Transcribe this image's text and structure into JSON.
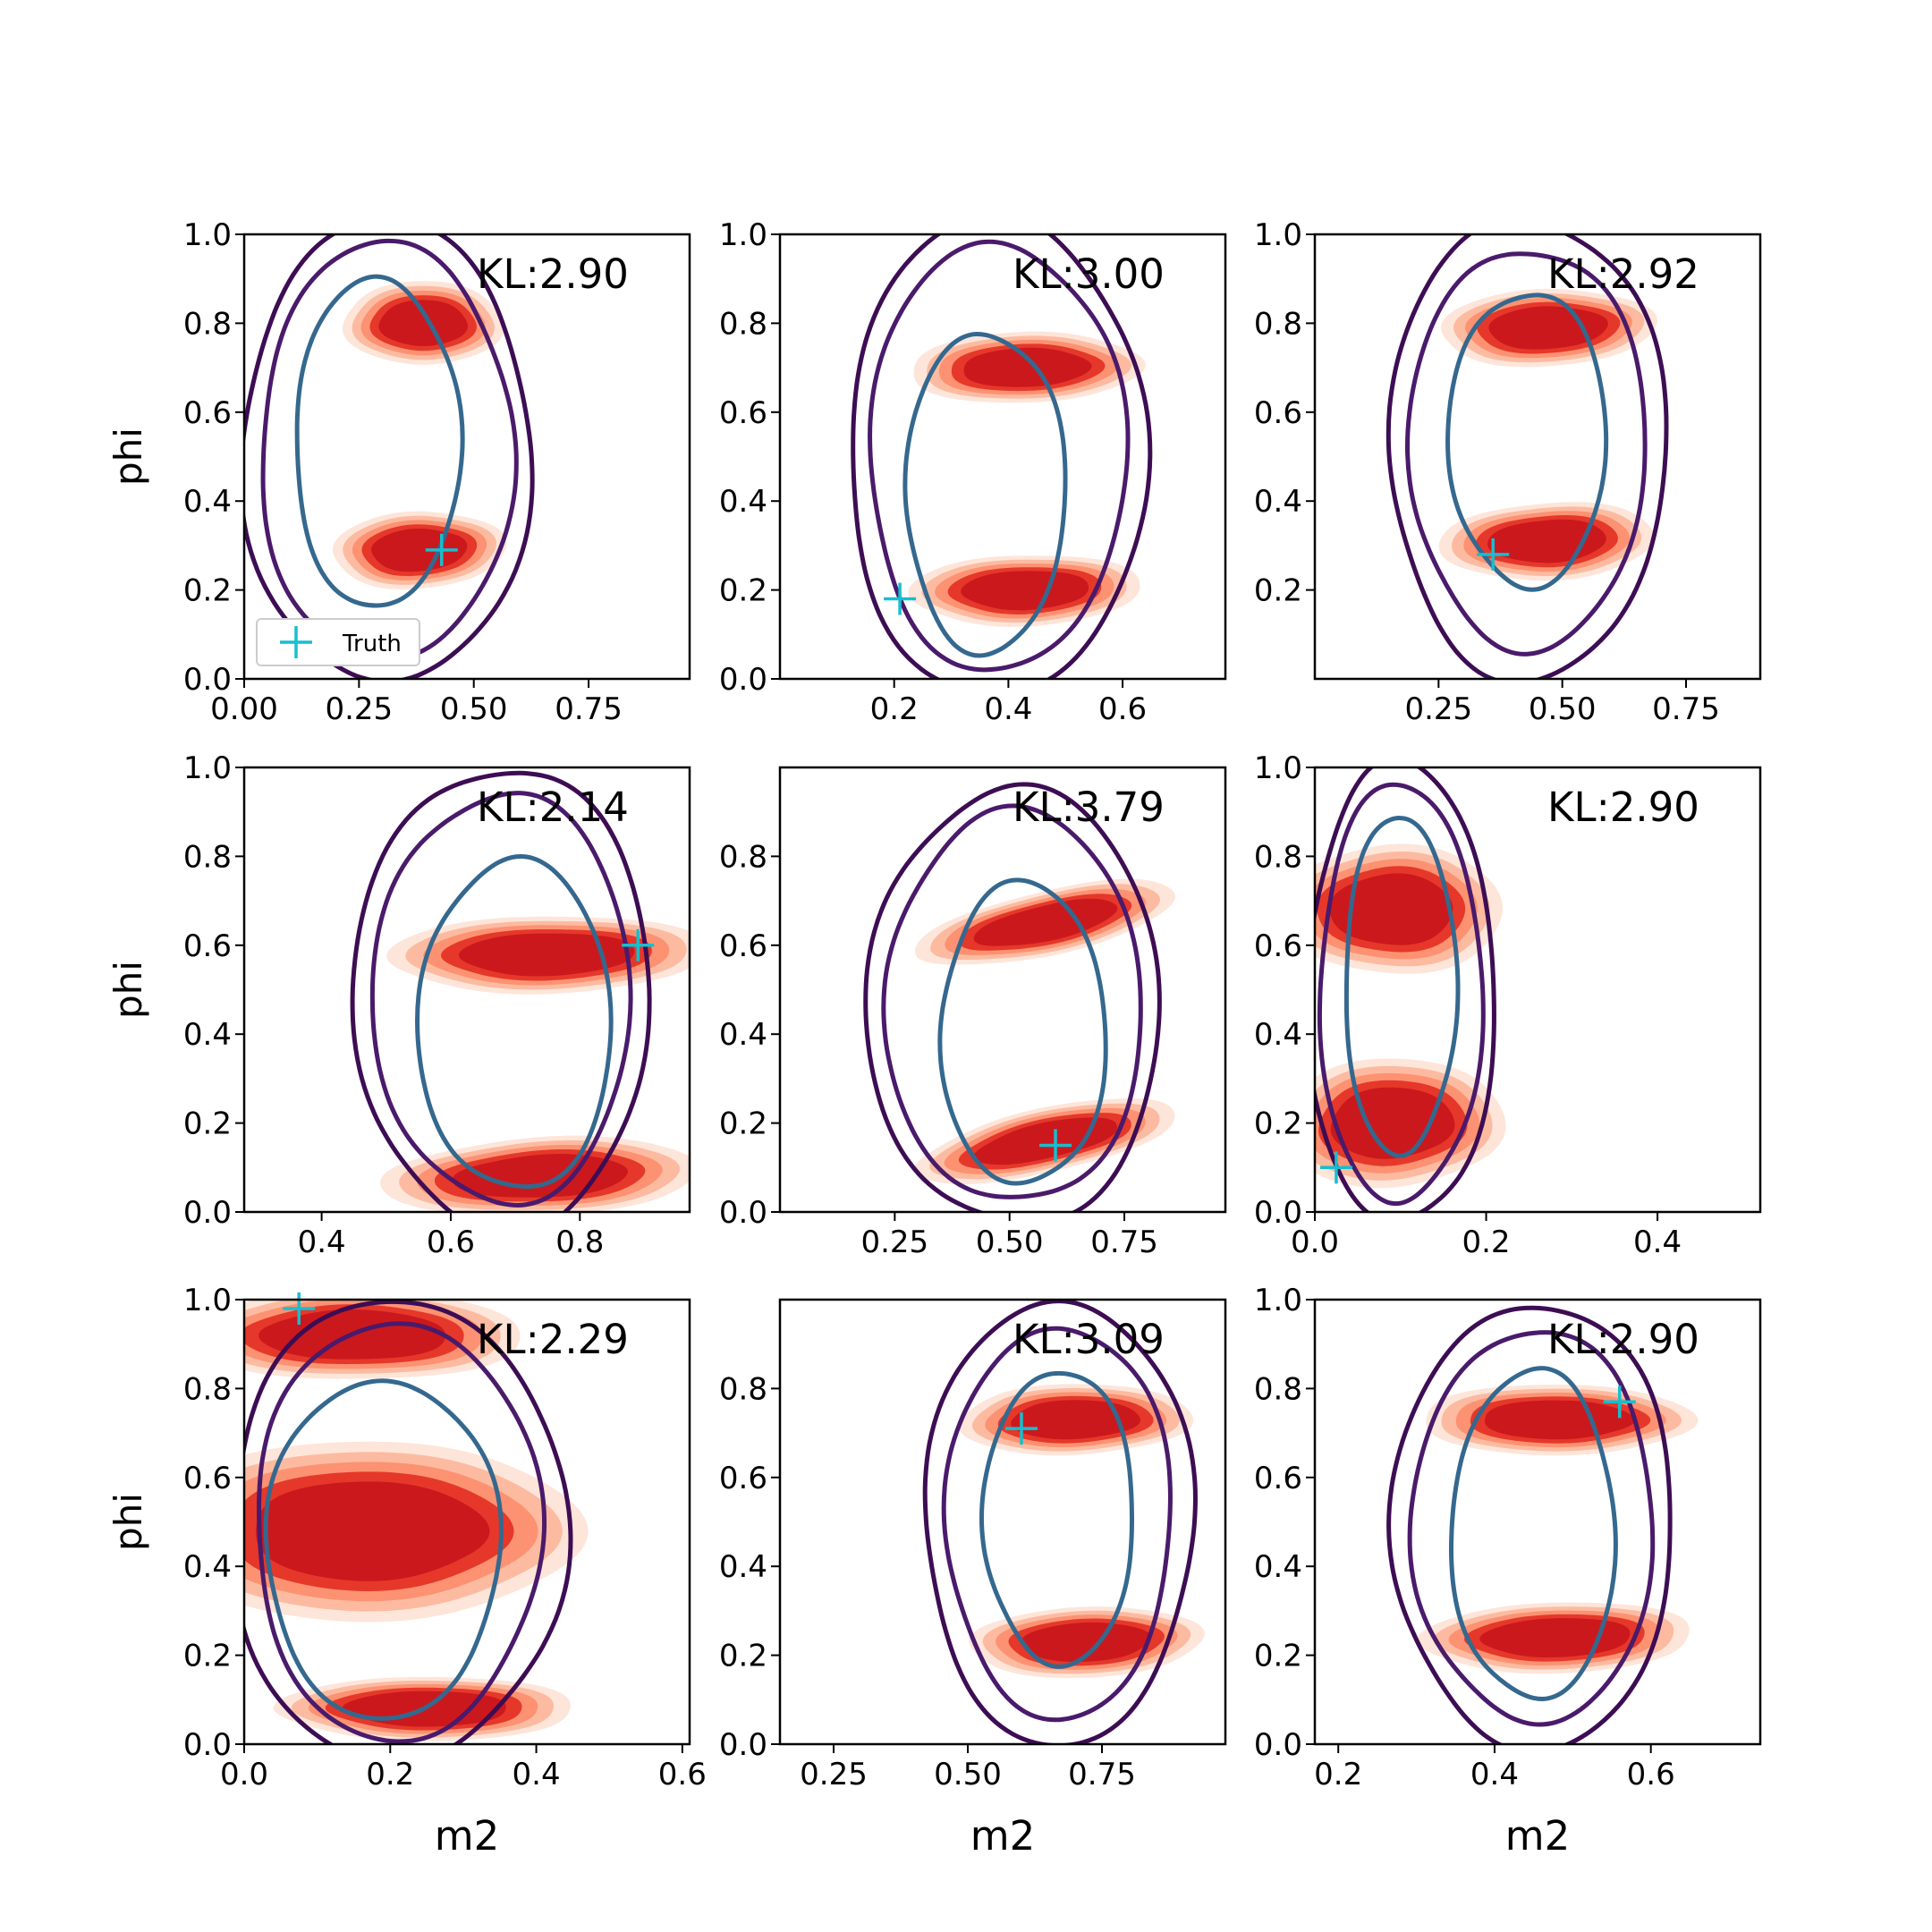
{
  "figure": {
    "legend_label": "Truth",
    "colors": {
      "fill_levels": [
        "#fee5d9",
        "#fcbba1",
        "#fc9272",
        "#e5382a",
        "#cb181d"
      ],
      "contour_outer": "#3d0d54",
      "contour_mid": "#4a1a6b",
      "contour_inner": "#35688e",
      "truth_marker": "#17becf",
      "axis": "#000000"
    }
  },
  "chart_data": [
    {
      "type": "contour",
      "panel": "1",
      "kl_label": "KL:2.90",
      "xlabel": "",
      "ylabel": "phi",
      "xlim": [
        0.0,
        0.97
      ],
      "ylim": [
        0,
        1
      ],
      "xticks": [
        "0.00",
        "0.25",
        "0.50",
        "0.75"
      ],
      "xtick_values": [
        0.0,
        0.25,
        0.5,
        0.75
      ],
      "yticks": [
        "0.0",
        "0.2",
        "0.4",
        "0.6",
        "0.8",
        "1.0"
      ],
      "ytick_values": [
        0.0,
        0.2,
        0.4,
        0.6,
        0.8,
        1.0
      ],
      "truth": [
        0.43,
        0.29
      ],
      "legend": true,
      "blobs": [
        {
          "cx": 0.39,
          "cy": 0.8,
          "rx": 0.12,
          "ry": 0.065,
          "tilt": 0
        },
        {
          "cx": 0.38,
          "cy": 0.29,
          "rx": 0.13,
          "ry": 0.06,
          "tilt": 0.05
        }
      ],
      "contours": [
        {
          "cx": 0.31,
          "cy": 0.51,
          "rx": 0.315,
          "ry": 0.52
        },
        {
          "cx": 0.31,
          "cy": 0.51,
          "rx": 0.275,
          "ry": 0.47
        },
        {
          "cx": 0.29,
          "cy": 0.53,
          "rx": 0.18,
          "ry": 0.37
        }
      ]
    },
    {
      "type": "contour",
      "panel": "2",
      "kl_label": "KL:3.00",
      "xlabel": "",
      "ylabel": "",
      "xlim": [
        0.0,
        0.78
      ],
      "ylim": [
        0,
        1
      ],
      "xticks": [
        "0.2",
        "0.4",
        "0.6"
      ],
      "xtick_values": [
        0.2,
        0.4,
        0.6
      ],
      "yticks": [
        "0.0",
        "0.2",
        "0.4",
        "0.6",
        "0.8",
        "1.0"
      ],
      "ytick_values": [
        0.0,
        0.2,
        0.4,
        0.6,
        0.8,
        1.0
      ],
      "truth": [
        0.21,
        0.18
      ],
      "legend": false,
      "blobs": [
        {
          "cx": 0.43,
          "cy": 0.7,
          "rx": 0.14,
          "ry": 0.055,
          "tilt": 0.03
        },
        {
          "cx": 0.43,
          "cy": 0.2,
          "rx": 0.14,
          "ry": 0.055,
          "tilt": 0.03
        }
      ],
      "contours": [
        {
          "cx": 0.38,
          "cy": 0.5,
          "rx": 0.26,
          "ry": 0.54
        },
        {
          "cx": 0.38,
          "cy": 0.5,
          "rx": 0.225,
          "ry": 0.48
        },
        {
          "cx": 0.36,
          "cy": 0.42,
          "rx": 0.14,
          "ry": 0.36
        }
      ]
    },
    {
      "type": "contour",
      "panel": "3",
      "kl_label": "KL:2.92",
      "xlabel": "",
      "ylabel": "",
      "xlim": [
        0.0,
        0.9
      ],
      "ylim": [
        0,
        1
      ],
      "xticks": [
        "0.25",
        "0.50",
        "0.75"
      ],
      "xtick_values": [
        0.25,
        0.5,
        0.75
      ],
      "yticks": [
        "0.2",
        "0.4",
        "0.6",
        "0.8",
        "1.0"
      ],
      "ytick_values": [
        0.2,
        0.4,
        0.6,
        0.8,
        1.0
      ],
      "truth": [
        0.36,
        0.28
      ],
      "legend": false,
      "blobs": [
        {
          "cx": 0.47,
          "cy": 0.79,
          "rx": 0.15,
          "ry": 0.06,
          "tilt": 0.04
        },
        {
          "cx": 0.47,
          "cy": 0.31,
          "rx": 0.15,
          "ry": 0.06,
          "tilt": 0.05
        }
      ],
      "contours": [
        {
          "cx": 0.43,
          "cy": 0.52,
          "rx": 0.28,
          "ry": 0.52
        },
        {
          "cx": 0.43,
          "cy": 0.52,
          "rx": 0.24,
          "ry": 0.45
        },
        {
          "cx": 0.43,
          "cy": 0.54,
          "rx": 0.16,
          "ry": 0.33
        }
      ]
    },
    {
      "type": "contour",
      "panel": "4",
      "kl_label": "KL:2.14",
      "xlabel": "",
      "ylabel": "phi",
      "xlim": [
        0.28,
        0.97
      ],
      "ylim": [
        0,
        1
      ],
      "xticks": [
        "0.4",
        "0.6",
        "0.8"
      ],
      "xtick_values": [
        0.4,
        0.6,
        0.8
      ],
      "yticks": [
        "0.0",
        "0.2",
        "0.4",
        "0.6",
        "0.8",
        "1.0"
      ],
      "ytick_values": [
        0.0,
        0.2,
        0.4,
        0.6,
        0.8,
        1.0
      ],
      "truth": [
        0.89,
        0.6
      ],
      "legend": false,
      "blobs": [
        {
          "cx": 0.75,
          "cy": 0.58,
          "rx": 0.17,
          "ry": 0.06,
          "tilt": 0.02
        },
        {
          "cx": 0.74,
          "cy": 0.08,
          "rx": 0.17,
          "ry": 0.06,
          "tilt": 0.05
        }
      ],
      "contours": [
        {
          "cx": 0.68,
          "cy": 0.48,
          "rx": 0.23,
          "ry": 0.52
        },
        {
          "cx": 0.68,
          "cy": 0.48,
          "rx": 0.2,
          "ry": 0.46
        },
        {
          "cx": 0.7,
          "cy": 0.42,
          "rx": 0.15,
          "ry": 0.37
        }
      ]
    },
    {
      "type": "contour",
      "panel": "5",
      "kl_label": "KL:3.79",
      "xlabel": "",
      "ylabel": "",
      "xlim": [
        0.0,
        0.97
      ],
      "ylim": [
        0,
        1
      ],
      "xticks": [
        "0.25",
        "0.50",
        "0.75"
      ],
      "xtick_values": [
        0.25,
        0.5,
        0.75
      ],
      "yticks": [
        "0.0",
        "0.2",
        "0.4",
        "0.6",
        "0.8"
      ],
      "ytick_values": [
        0.0,
        0.2,
        0.4,
        0.6,
        0.8
      ],
      "truth": [
        0.6,
        0.15
      ],
      "legend": false,
      "blobs": [
        {
          "cx": 0.58,
          "cy": 0.65,
          "rx": 0.2,
          "ry": 0.05,
          "tilt": 0.22
        },
        {
          "cx": 0.58,
          "cy": 0.16,
          "rx": 0.2,
          "ry": 0.05,
          "tilt": 0.22
        }
      ],
      "contours": [
        {
          "cx": 0.51,
          "cy": 0.46,
          "rx": 0.32,
          "ry": 0.49
        },
        {
          "cx": 0.51,
          "cy": 0.46,
          "rx": 0.28,
          "ry": 0.44
        },
        {
          "cx": 0.53,
          "cy": 0.4,
          "rx": 0.18,
          "ry": 0.34
        }
      ]
    },
    {
      "type": "contour",
      "panel": "6",
      "kl_label": "KL:2.90",
      "xlabel": "",
      "ylabel": "",
      "xlim": [
        0.0,
        0.52
      ],
      "ylim": [
        0,
        1
      ],
      "xticks": [
        "0.0",
        "0.2",
        "0.4"
      ],
      "xtick_values": [
        0.0,
        0.2,
        0.4
      ],
      "yticks": [
        "0.0",
        "0.2",
        "0.4",
        "0.6",
        "0.8",
        "1.0"
      ],
      "ytick_values": [
        0.0,
        0.2,
        0.4,
        0.6,
        0.8,
        1.0
      ],
      "truth": [
        0.025,
        0.1
      ],
      "legend": false,
      "blobs": [
        {
          "cx": 0.09,
          "cy": 0.68,
          "rx": 0.09,
          "ry": 0.1,
          "tilt": 0
        },
        {
          "cx": 0.09,
          "cy": 0.2,
          "rx": 0.09,
          "ry": 0.1,
          "tilt": 0.05
        }
      ],
      "contours": [
        {
          "cx": 0.1,
          "cy": 0.49,
          "rx": 0.11,
          "ry": 0.52
        },
        {
          "cx": 0.1,
          "cy": 0.49,
          "rx": 0.095,
          "ry": 0.47
        },
        {
          "cx": 0.1,
          "cy": 0.51,
          "rx": 0.065,
          "ry": 0.38
        }
      ]
    },
    {
      "type": "contour",
      "panel": "7",
      "kl_label": "KL:2.29",
      "xlabel": "m2",
      "ylabel": "phi",
      "xlim": [
        0.0,
        0.61
      ],
      "ylim": [
        0,
        1
      ],
      "xticks": [
        "0.0",
        "0.2",
        "0.4",
        "0.6"
      ],
      "xtick_values": [
        0.0,
        0.2,
        0.4,
        0.6
      ],
      "yticks": [
        "0.0",
        "0.2",
        "0.4",
        "0.6",
        "0.8",
        "1.0"
      ],
      "ytick_values": [
        0.0,
        0.2,
        0.4,
        0.6,
        0.8,
        1.0
      ],
      "truth": [
        0.075,
        0.98
      ],
      "legend": false,
      "blobs": [
        {
          "cx": 0.15,
          "cy": 0.92,
          "rx": 0.16,
          "ry": 0.07,
          "tilt": 0
        },
        {
          "cx": 0.17,
          "cy": 0.48,
          "rx": 0.2,
          "ry": 0.14,
          "tilt": 0
        },
        {
          "cx": 0.25,
          "cy": 0.08,
          "rx": 0.14,
          "ry": 0.05,
          "tilt": 0
        }
      ],
      "contours": [
        {
          "cx": 0.21,
          "cy": 0.48,
          "rx": 0.23,
          "ry": 0.52
        },
        {
          "cx": 0.21,
          "cy": 0.48,
          "rx": 0.195,
          "ry": 0.47
        },
        {
          "cx": 0.19,
          "cy": 0.44,
          "rx": 0.16,
          "ry": 0.38
        }
      ]
    },
    {
      "type": "contour",
      "panel": "8",
      "kl_label": "KL:3.09",
      "xlabel": "m2",
      "ylabel": "",
      "xlim": [
        0.15,
        0.98
      ],
      "ylim": [
        0,
        1
      ],
      "xticks": [
        "0.25",
        "0.50",
        "0.75"
      ],
      "xtick_values": [
        0.25,
        0.5,
        0.75
      ],
      "yticks": [
        "0.0",
        "0.2",
        "0.4",
        "0.6",
        "0.8"
      ],
      "ytick_values": [
        0.0,
        0.2,
        0.4,
        0.6,
        0.8
      ],
      "truth": [
        0.6,
        0.71
      ],
      "legend": false,
      "blobs": [
        {
          "cx": 0.7,
          "cy": 0.73,
          "rx": 0.15,
          "ry": 0.055,
          "tilt": 0.03
        },
        {
          "cx": 0.72,
          "cy": 0.23,
          "rx": 0.15,
          "ry": 0.055,
          "tilt": 0.04
        }
      ],
      "contours": [
        {
          "cx": 0.67,
          "cy": 0.5,
          "rx": 0.25,
          "ry": 0.5
        },
        {
          "cx": 0.67,
          "cy": 0.5,
          "rx": 0.21,
          "ry": 0.44
        },
        {
          "cx": 0.67,
          "cy": 0.51,
          "rx": 0.14,
          "ry": 0.33
        }
      ]
    },
    {
      "type": "contour",
      "panel": "9",
      "kl_label": "KL:2.90",
      "xlabel": "m2",
      "ylabel": "",
      "xlim": [
        0.17,
        0.74
      ],
      "ylim": [
        0,
        1
      ],
      "xticks": [
        "0.2",
        "0.4",
        "0.6"
      ],
      "xtick_values": [
        0.2,
        0.4,
        0.6
      ],
      "yticks": [
        "0.0",
        "0.2",
        "0.4",
        "0.6",
        "0.8",
        "1.0"
      ],
      "ytick_values": [
        0.0,
        0.2,
        0.4,
        0.6,
        0.8,
        1.0
      ],
      "truth": [
        0.56,
        0.77
      ],
      "legend": false,
      "blobs": [
        {
          "cx": 0.48,
          "cy": 0.73,
          "rx": 0.12,
          "ry": 0.055,
          "tilt": 0
        },
        {
          "cx": 0.48,
          "cy": 0.24,
          "rx": 0.12,
          "ry": 0.055,
          "tilt": 0.03
        }
      ],
      "contours": [
        {
          "cx": 0.45,
          "cy": 0.49,
          "rx": 0.18,
          "ry": 0.5
        },
        {
          "cx": 0.45,
          "cy": 0.49,
          "rx": 0.155,
          "ry": 0.44
        },
        {
          "cx": 0.45,
          "cy": 0.47,
          "rx": 0.105,
          "ry": 0.37
        }
      ]
    }
  ]
}
